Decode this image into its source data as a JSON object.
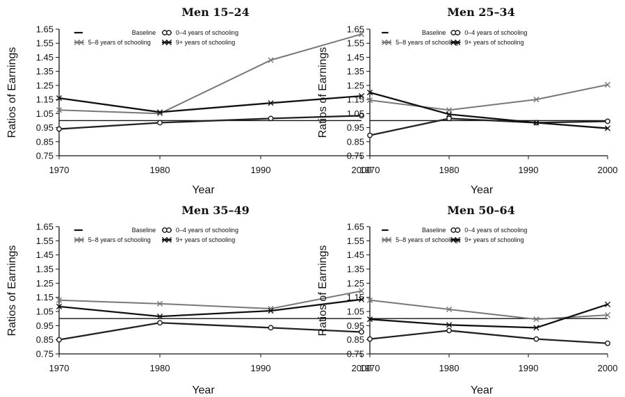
{
  "chart_data": [
    {
      "type": "line",
      "title": "Men 15–24",
      "xlabel": "Year",
      "ylabel": "Ratios of Earnings",
      "x": [
        1970,
        1980,
        1991,
        2000
      ],
      "ylim": [
        0.75,
        1.65
      ],
      "yticks": [
        "0.75",
        "0.85",
        "0.95",
        "1.05",
        "1.15",
        "1.25",
        "1.35",
        "1.45",
        "1.55",
        "1.65"
      ],
      "xticks": [
        "1970",
        "1980",
        "1990",
        "2000"
      ],
      "legend": "top",
      "series": [
        {
          "name": "Baseline",
          "values": [
            1.0,
            1.0,
            1.0,
            1.0
          ],
          "color": "#111111",
          "marker": "none"
        },
        {
          "name": "0–4 years of schooling",
          "values": [
            0.94,
            0.985,
            1.015,
            1.035
          ],
          "color": "#222222",
          "marker": "circle"
        },
        {
          "name": "5–8 years of schooling",
          "values": [
            1.075,
            1.05,
            1.43,
            1.615
          ],
          "color": "#777777",
          "marker": "x"
        },
        {
          "name": "9+ years of schooling",
          "values": [
            1.16,
            1.06,
            1.125,
            1.175
          ],
          "color": "#111111",
          "marker": "x"
        }
      ]
    },
    {
      "type": "line",
      "title": "Men 25–34",
      "xlabel": "Year",
      "ylabel": "Ratios of Earnings",
      "x": [
        1970,
        1980,
        1991,
        2000
      ],
      "ylim": [
        0.75,
        1.65
      ],
      "yticks": [
        "0.75",
        "0.85",
        "0.95",
        "1.05",
        "1.15",
        "1.25",
        "1.35",
        "1.45",
        "1.55",
        "1.65"
      ],
      "xticks": [
        "1970",
        "1980",
        "1990",
        "2000"
      ],
      "legend": "top",
      "series": [
        {
          "name": "Baseline",
          "values": [
            1.0,
            1.0,
            1.0,
            1.0
          ],
          "color": "#111111",
          "marker": "none"
        },
        {
          "name": "0–4 years of schooling",
          "values": [
            0.895,
            1.015,
            0.985,
            0.995
          ],
          "color": "#222222",
          "marker": "circle"
        },
        {
          "name": "5–8 years of schooling",
          "values": [
            1.145,
            1.075,
            1.15,
            1.255
          ],
          "color": "#777777",
          "marker": "x"
        },
        {
          "name": "9+ years of schooling",
          "values": [
            1.2,
            1.045,
            0.985,
            0.945
          ],
          "color": "#111111",
          "marker": "x"
        }
      ]
    },
    {
      "type": "line",
      "title": "Men 35–49",
      "xlabel": "Year",
      "ylabel": "Ratios of Earnings",
      "x": [
        1970,
        1980,
        1991,
        2000
      ],
      "ylim": [
        0.75,
        1.65
      ],
      "yticks": [
        "0.75",
        "0.85",
        "0.95",
        "1.05",
        "1.15",
        "1.25",
        "1.35",
        "1.45",
        "1.55",
        "1.65"
      ],
      "xticks": [
        "1970",
        "1980",
        "1990",
        "2000"
      ],
      "legend": "top",
      "series": [
        {
          "name": "Baseline",
          "values": [
            1.0,
            1.0,
            1.0,
            1.0
          ],
          "color": "#111111",
          "marker": "none"
        },
        {
          "name": "0–4 years of schooling",
          "values": [
            0.85,
            0.97,
            0.935,
            0.905
          ],
          "color": "#222222",
          "marker": "circle"
        },
        {
          "name": "5–8 years of schooling",
          "values": [
            1.13,
            1.105,
            1.07,
            1.195
          ],
          "color": "#777777",
          "marker": "x"
        },
        {
          "name": "9+ years of schooling",
          "values": [
            1.085,
            1.015,
            1.055,
            1.135
          ],
          "color": "#111111",
          "marker": "x"
        }
      ]
    },
    {
      "type": "line",
      "title": "Men 50–64",
      "xlabel": "Year",
      "ylabel": "Ratios of Earnings",
      "x": [
        1970,
        1980,
        1991,
        2000
      ],
      "ylim": [
        0.75,
        1.65
      ],
      "yticks": [
        "0.75",
        "0.85",
        "0.95",
        "1.05",
        "1.15",
        "1.25",
        "1.35",
        "1.45",
        "1.55",
        "1.65"
      ],
      "xticks": [
        "1970",
        "1980",
        "1990",
        "2000"
      ],
      "legend": "top",
      "series": [
        {
          "name": "Baseline",
          "values": [
            1.0,
            1.0,
            1.0,
            1.0
          ],
          "color": "#111111",
          "marker": "none"
        },
        {
          "name": "0–4 years of schooling",
          "values": [
            0.855,
            0.915,
            0.855,
            0.825
          ],
          "color": "#222222",
          "marker": "circle"
        },
        {
          "name": "5–8 years of schooling",
          "values": [
            1.13,
            1.065,
            0.995,
            1.025
          ],
          "color": "#777777",
          "marker": "x"
        },
        {
          "name": "9+ years of schooling",
          "values": [
            0.995,
            0.955,
            0.935,
            1.1
          ],
          "color": "#111111",
          "marker": "x"
        }
      ]
    }
  ]
}
